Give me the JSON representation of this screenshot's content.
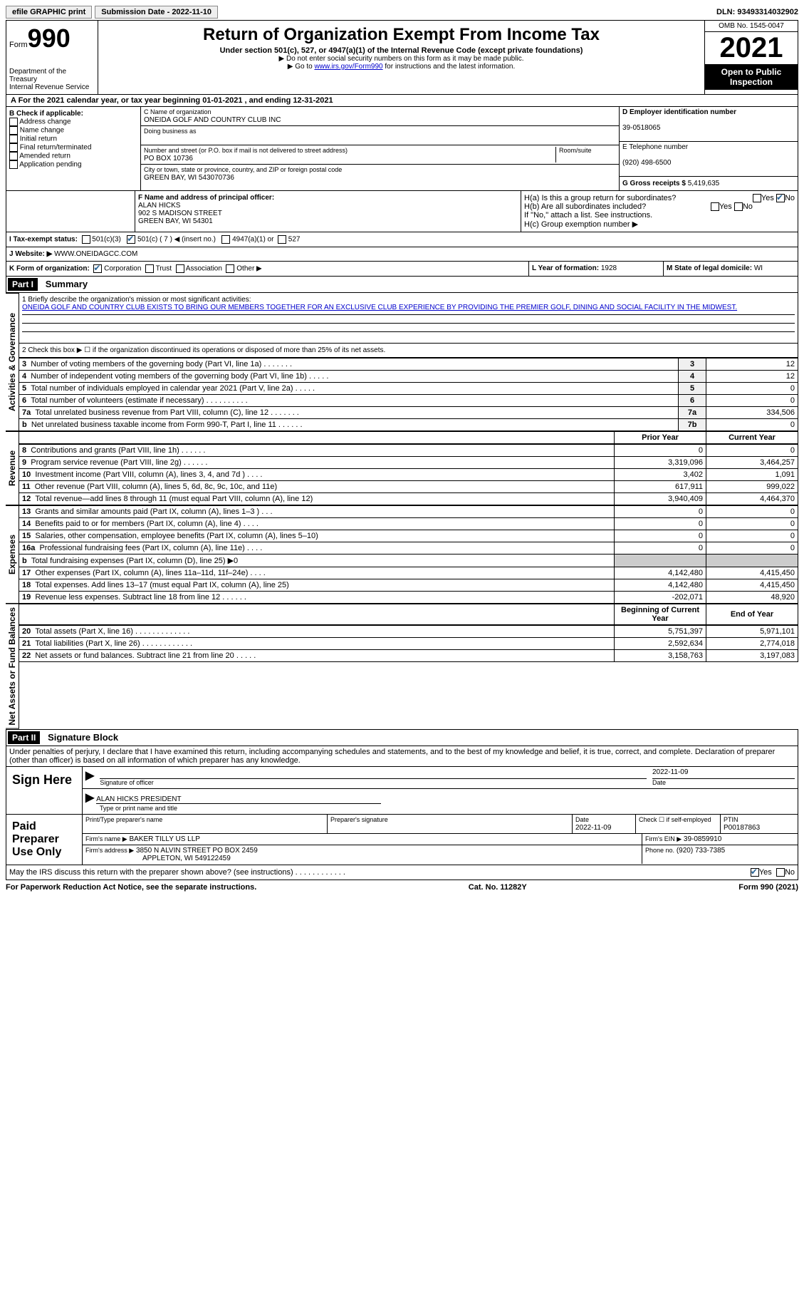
{
  "topbar": {
    "efile": "efile GRAPHIC print",
    "submission_label": "Submission Date - 2022-11-10",
    "dln": "DLN: 93493314032902"
  },
  "header": {
    "form_word": "Form",
    "form_num": "990",
    "dept": "Department of the Treasury",
    "irs": "Internal Revenue Service",
    "title": "Return of Organization Exempt From Income Tax",
    "subtitle": "Under section 501(c), 527, or 4947(a)(1) of the Internal Revenue Code (except private foundations)",
    "note1": "▶ Do not enter social security numbers on this form as it may be made public.",
    "note2_pre": "▶ Go to ",
    "note2_link": "www.irs.gov/Form990",
    "note2_post": " for instructions and the latest information.",
    "omb": "OMB No. 1545-0047",
    "year": "2021",
    "open": "Open to Public Inspection"
  },
  "period": {
    "text": "A  For the 2021 calendar year, or tax year beginning 01-01-2021    , and ending 12-31-2021"
  },
  "sectionB": {
    "label": "B Check if applicable:",
    "opts": [
      "Address change",
      "Name change",
      "Initial return",
      "Final return/terminated",
      "Amended return",
      "Application pending"
    ]
  },
  "sectionC": {
    "name_label": "C Name of organization",
    "name": "ONEIDA GOLF AND COUNTRY CLUB INC",
    "dba_label": "Doing business as",
    "addr_label": "Number and street (or P.O. box if mail is not delivered to street address)",
    "room_label": "Room/suite",
    "addr": "PO BOX 10736",
    "city_label": "City or town, state or province, country, and ZIP or foreign postal code",
    "city": "GREEN BAY, WI  543070736"
  },
  "sectionD": {
    "label": "D Employer identification number",
    "ein": "39-0518065",
    "phone_label": "E Telephone number",
    "phone": "(920) 498-6500",
    "gross_label": "G Gross receipts $",
    "gross": "5,419,635"
  },
  "sectionF": {
    "label": "F Name and address of principal officer:",
    "name": "ALAN HICKS",
    "addr1": "902 S MADISON STREET",
    "addr2": "GREEN BAY, WI  54301"
  },
  "sectionH": {
    "a": "H(a)  Is this a group return for subordinates?",
    "b": "H(b)  Are all subordinates included?",
    "note": "If \"No,\" attach a list. See instructions.",
    "c": "H(c)  Group exemption number ▶"
  },
  "taxexempt": {
    "label": "I   Tax-exempt status:",
    "c3": "501(c)(3)",
    "c": "501(c) ( 7 ) ◀ (insert no.)",
    "a1": "4947(a)(1) or",
    "s527": "527"
  },
  "website": {
    "label": "J   Website: ▶",
    "url": "WWW.ONEIDAGCC.COM"
  },
  "formorg": {
    "label": "K Form of organization:",
    "corp": "Corporation",
    "trust": "Trust",
    "assoc": "Association",
    "other": "Other ▶",
    "year_label": "L Year of formation:",
    "year": "1928",
    "state_label": "M State of legal domicile:",
    "state": "WI"
  },
  "part1": {
    "bar": "Part I",
    "title": "Summary",
    "line1_label": "1   Briefly describe the organization's mission or most significant activities:",
    "mission": "ONEIDA GOLF AND COUNTRY CLUB EXISTS TO BRING OUR MEMBERS TOGETHER FOR AN EXCLUSIVE CLUB EXPERIENCE BY PROVIDING THE PREMIER GOLF, DINING AND SOCIAL FACILITY IN THE MIDWEST.",
    "line2": "2   Check this box ▶ ☐  if the organization discontinued its operations or disposed of more than 25% of its net assets.",
    "vert_ag": "Activities & Governance",
    "vert_rev": "Revenue",
    "vert_exp": "Expenses",
    "vert_net": "Net Assets or Fund Balances",
    "prior_label": "Prior Year",
    "current_label": "Current Year",
    "begin_label": "Beginning of Current Year",
    "end_label": "End of Year",
    "rows_ag": [
      {
        "n": "3",
        "d": "Number of voting members of the governing body (Part VI, line 1a)  .   .   .   .   .   .   .",
        "box": "3",
        "v": "12"
      },
      {
        "n": "4",
        "d": "Number of independent voting members of the governing body (Part VI, line 1b)  .   .   .   .   .",
        "box": "4",
        "v": "12"
      },
      {
        "n": "5",
        "d": "Total number of individuals employed in calendar year 2021 (Part V, line 2a)  .   .   .   .   .",
        "box": "5",
        "v": "0"
      },
      {
        "n": "6",
        "d": "Total number of volunteers (estimate if necessary)   .    .    .    .    .    .    .    .    .    .",
        "box": "6",
        "v": "0"
      },
      {
        "n": "7a",
        "d": "Total unrelated business revenue from Part VIII, column (C), line 12  .   .   .   .   .   .   .",
        "box": "7a",
        "v": "334,506"
      },
      {
        "n": "b",
        "d": "Net unrelated business taxable income from Form 990-T, Part I, line 11  .   .   .   .   .   .",
        "box": "7b",
        "v": "0"
      }
    ],
    "rows_rev": [
      {
        "n": "8",
        "d": "Contributions and grants (Part VIII, line 1h)   .    .    .    .    .    .",
        "p": "0",
        "c": "0"
      },
      {
        "n": "9",
        "d": "Program service revenue (Part VIII, line 2g)   .    .    .    .    .    .",
        "p": "3,319,096",
        "c": "3,464,257"
      },
      {
        "n": "10",
        "d": "Investment income (Part VIII, column (A), lines 3, 4, and 7d )   .    .    .    .",
        "p": "3,402",
        "c": "1,091"
      },
      {
        "n": "11",
        "d": "Other revenue (Part VIII, column (A), lines 5, 6d, 8c, 9c, 10c, and 11e)",
        "p": "617,911",
        "c": "999,022"
      },
      {
        "n": "12",
        "d": "Total revenue—add lines 8 through 11 (must equal Part VIII, column (A), line 12)",
        "p": "3,940,409",
        "c": "4,464,370"
      }
    ],
    "rows_exp": [
      {
        "n": "13",
        "d": "Grants and similar amounts paid (Part IX, column (A), lines 1–3 )  .   .   .",
        "p": "0",
        "c": "0"
      },
      {
        "n": "14",
        "d": "Benefits paid to or for members (Part IX, column (A), line 4)  .   .   .   .",
        "p": "0",
        "c": "0"
      },
      {
        "n": "15",
        "d": "Salaries, other compensation, employee benefits (Part IX, column (A), lines 5–10)",
        "p": "0",
        "c": "0"
      },
      {
        "n": "16a",
        "d": "Professional fundraising fees (Part IX, column (A), line 11e)  .   .   .   .",
        "p": "0",
        "c": "0"
      },
      {
        "n": "b",
        "d": "Total fundraising expenses (Part IX, column (D), line 25) ▶0",
        "p": "",
        "c": "",
        "shaded": true
      },
      {
        "n": "17",
        "d": "Other expenses (Part IX, column (A), lines 11a–11d, 11f–24e)  .   .   .   .",
        "p": "4,142,480",
        "c": "4,415,450"
      },
      {
        "n": "18",
        "d": "Total expenses. Add lines 13–17 (must equal Part IX, column (A), line 25)",
        "p": "4,142,480",
        "c": "4,415,450"
      },
      {
        "n": "19",
        "d": "Revenue less expenses. Subtract line 18 from line 12  .   .   .   .   .   .",
        "p": "-202,071",
        "c": "48,920"
      }
    ],
    "rows_net": [
      {
        "n": "20",
        "d": "Total assets (Part X, line 16)  .   .   .   .   .   .   .   .   .   .   .   .   .",
        "p": "5,751,397",
        "c": "5,971,101"
      },
      {
        "n": "21",
        "d": "Total liabilities (Part X, line 26)  .   .   .   .   .   .   .   .   .   .   .   .",
        "p": "2,592,634",
        "c": "2,774,018"
      },
      {
        "n": "22",
        "d": "Net assets or fund balances. Subtract line 21 from line 20  .   .   .   .   .",
        "p": "3,158,763",
        "c": "3,197,083"
      }
    ]
  },
  "part2": {
    "bar": "Part II",
    "title": "Signature Block",
    "decl": "Under penalties of perjury, I declare that I have examined this return, including accompanying schedules and statements, and to the best of my knowledge and belief, it is true, correct, and complete. Declaration of preparer (other than officer) is based on all information of which preparer has any knowledge.",
    "sign_here": "Sign Here",
    "sig_officer": "Signature of officer",
    "sig_date": "2022-11-09",
    "date_label": "Date",
    "officer_name": "ALAN HICKS  PRESIDENT",
    "officer_label": "Type or print name and title",
    "paid": "Paid Preparer Use Only",
    "prep_name_label": "Print/Type preparer's name",
    "prep_sig_label": "Preparer's signature",
    "prep_date_label": "Date",
    "prep_date": "2022-11-09",
    "self_emp": "Check ☐ if self-employed",
    "ptin_label": "PTIN",
    "ptin": "P00187863",
    "firm_name_label": "Firm's name    ▶",
    "firm_name": "BAKER TILLY US LLP",
    "firm_ein_label": "Firm's EIN ▶",
    "firm_ein": "39-0859910",
    "firm_addr_label": "Firm's address ▶",
    "firm_addr1": "3850 N ALVIN STREET PO BOX 2459",
    "firm_addr2": "APPLETON, WI  549122459",
    "firm_phone_label": "Phone no.",
    "firm_phone": "(920) 733-7385",
    "discuss": "May the IRS discuss this return with the preparer shown above? (see instructions)   .    .    .    .    .    .    .    .    .    .    .    ."
  },
  "footer": {
    "left": "For Paperwork Reduction Act Notice, see the separate instructions.",
    "mid": "Cat. No. 11282Y",
    "right": "Form 990 (2021)"
  },
  "yn": {
    "yes": "Yes",
    "no": "No"
  }
}
